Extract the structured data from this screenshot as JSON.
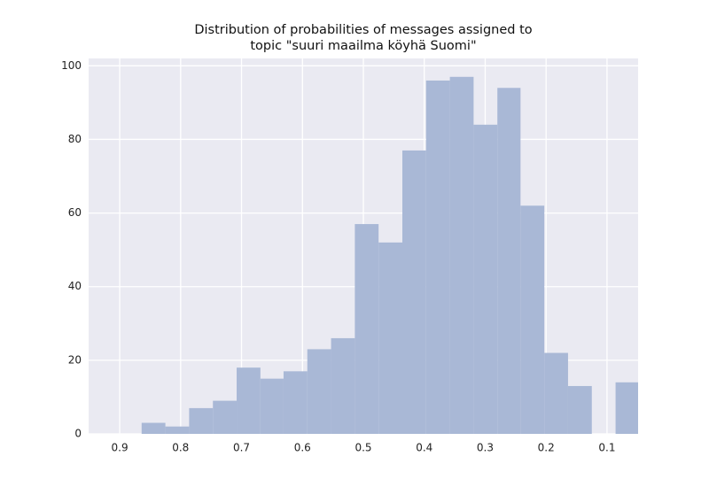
{
  "chart_data": {
    "type": "histogram",
    "title": [
      "Distribution of probabilities of messages assigned to",
      "topic \"suuri maailma köyhä Suomi\""
    ],
    "bins": [
      0.864,
      0.825,
      0.786,
      0.747,
      0.708,
      0.669,
      0.631,
      0.592,
      0.553,
      0.514,
      0.475,
      0.436,
      0.397,
      0.358,
      0.319,
      0.28,
      0.242,
      0.203,
      0.164,
      0.125,
      0.086,
      0.047
    ],
    "values": [
      3,
      2,
      7,
      9,
      18,
      15,
      17,
      23,
      26,
      57,
      52,
      77,
      96,
      97,
      84,
      94,
      62,
      22,
      13,
      0,
      14
    ],
    "color": "#a9b8d6",
    "xlim": [
      0.951,
      0.049
    ],
    "xticks": [
      0.9,
      0.8,
      0.7,
      0.6,
      0.5,
      0.4,
      0.3,
      0.2,
      0.1
    ],
    "ylim": [
      0,
      102
    ],
    "yticks": [
      0,
      20,
      40,
      60,
      80,
      100
    ],
    "grid": true
  }
}
